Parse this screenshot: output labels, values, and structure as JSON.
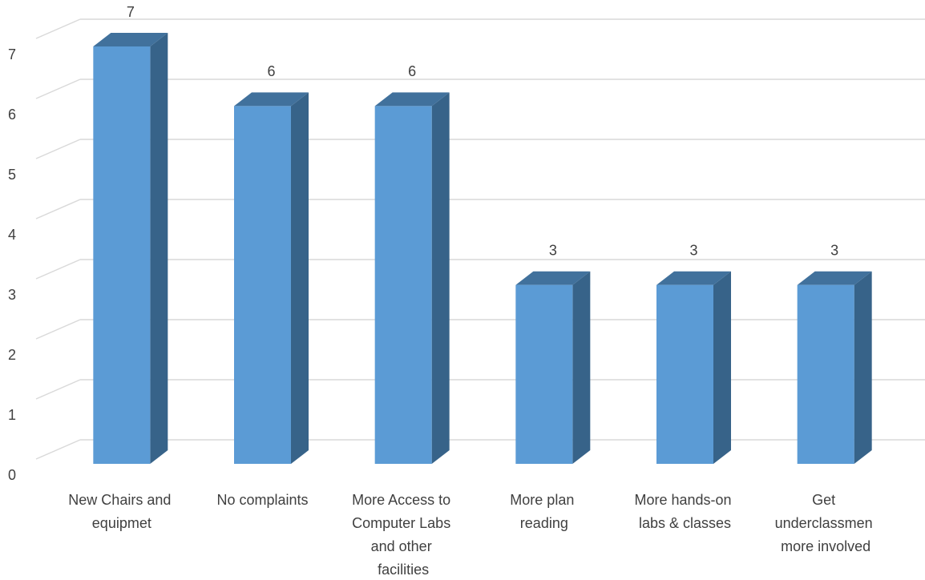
{
  "chart_data": {
    "type": "bar3d",
    "categories": [
      "New Chairs and equipmet",
      "No complaints",
      "More Access to Computer Labs and other facilities",
      "More plan reading",
      "More hands-on labs & classes",
      "Get underclassmen more involved"
    ],
    "values": [
      7,
      6,
      6,
      3,
      3,
      3
    ],
    "color": "#5b9bd5",
    "ylim": [
      0,
      7
    ],
    "yticks": [
      0,
      1,
      2,
      3,
      4,
      5,
      6,
      7
    ],
    "grid": true
  }
}
